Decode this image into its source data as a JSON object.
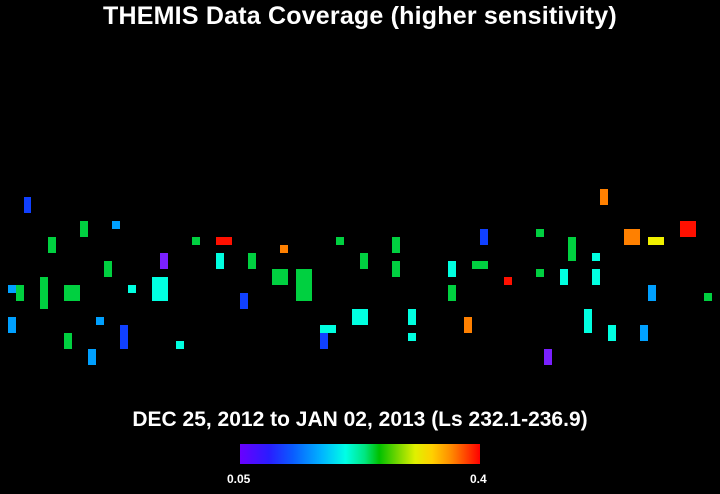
{
  "title": "THEMIS Data Coverage (higher sensitivity)",
  "subtitle": "DEC 25, 2012 to JAN 02, 2013 (Ls 232.1-236.9)",
  "colorbar": {
    "min_label": "0.05",
    "max_label": "0.4"
  },
  "palette": {
    "violet": "#7a20ff",
    "blue": "#1040ff",
    "lightblue": "#00a0ff",
    "cyan": "#00ffe0",
    "green": "#00d040",
    "lime": "#00c000",
    "yellow": "#f0f000",
    "orange": "#ff8000",
    "red": "#ff1000"
  }
}
